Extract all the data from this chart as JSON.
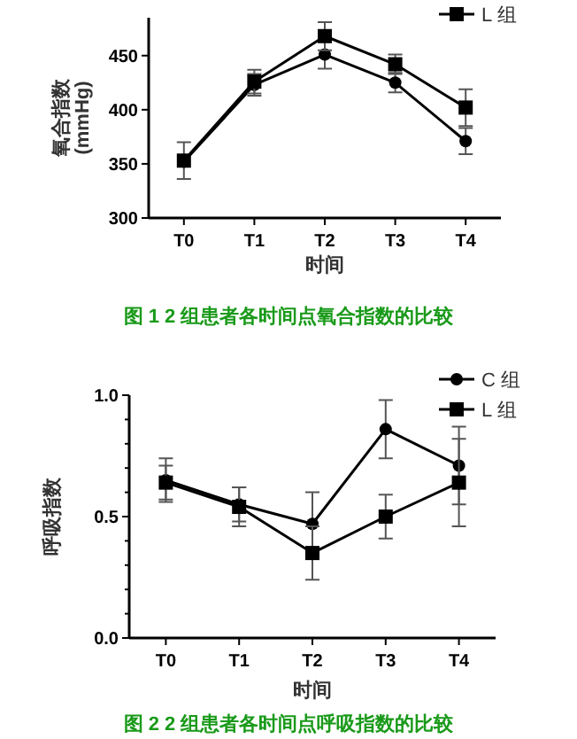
{
  "chart_data": [
    {
      "type": "line",
      "xlabel": "时间",
      "ylabel": "氧合指数 (mmHg)",
      "categories": [
        "T0",
        "T1",
        "T2",
        "T3",
        "T4"
      ],
      "ylim": [
        300,
        485
      ],
      "yticks": [
        300,
        350,
        400,
        450
      ],
      "legend": "top right",
      "annotations": [
        "图 1  2 组患者各时间点氧合指数的比较"
      ],
      "series": [
        {
          "color": "#000000",
          "marker": "circle",
          "values": [
            352,
            423,
            451,
            425,
            371
          ],
          "errors": [
            null,
            10,
            13,
            9,
            12
          ]
        },
        {
          "name": "L 组",
          "color": "#000000",
          "marker": "square",
          "values": [
            353,
            426,
            468,
            442,
            402
          ],
          "errors": [
            17,
            11,
            13,
            9,
            17
          ]
        }
      ]
    },
    {
      "type": "line",
      "xlabel": "时间",
      "ylabel": "呼吸指数",
      "categories": [
        "T0",
        "T1",
        "T2",
        "T3",
        "T4"
      ],
      "ylim": [
        0,
        1
      ],
      "yticks": [
        {
          "value": 0,
          "label": "0.0"
        },
        {
          "value": 0.1,
          "label": null
        },
        {
          "value": 0.2,
          "label": null
        },
        {
          "value": 0.3,
          "label": null
        },
        {
          "value": 0.4,
          "label": null
        },
        {
          "value": 0.5,
          "label": "0.5"
        },
        {
          "value": 0.6,
          "label": null
        },
        {
          "value": 0.7,
          "label": null
        },
        {
          "value": 0.8,
          "label": null
        },
        {
          "value": 0.9,
          "label": null
        },
        {
          "value": 1,
          "label": "1.0"
        }
      ],
      "legend": "top right",
      "annotations": [
        "图 2  2 组患者各时间点呼吸指数的比较"
      ],
      "series": [
        {
          "name": "C 组",
          "color": "#000000",
          "marker": "circle",
          "values": [
            0.65,
            0.55,
            0.47,
            0.86,
            0.71
          ],
          "errors": [
            0.09,
            0.07,
            0.13,
            0.12,
            0.16
          ]
        },
        {
          "name": "L 组",
          "color": "#000000",
          "marker": "square",
          "values": [
            0.64,
            0.54,
            0.35,
            0.5,
            0.64
          ],
          "errors": [
            0.07,
            0.08,
            0.11,
            0.09,
            0.18
          ]
        }
      ]
    }
  ]
}
